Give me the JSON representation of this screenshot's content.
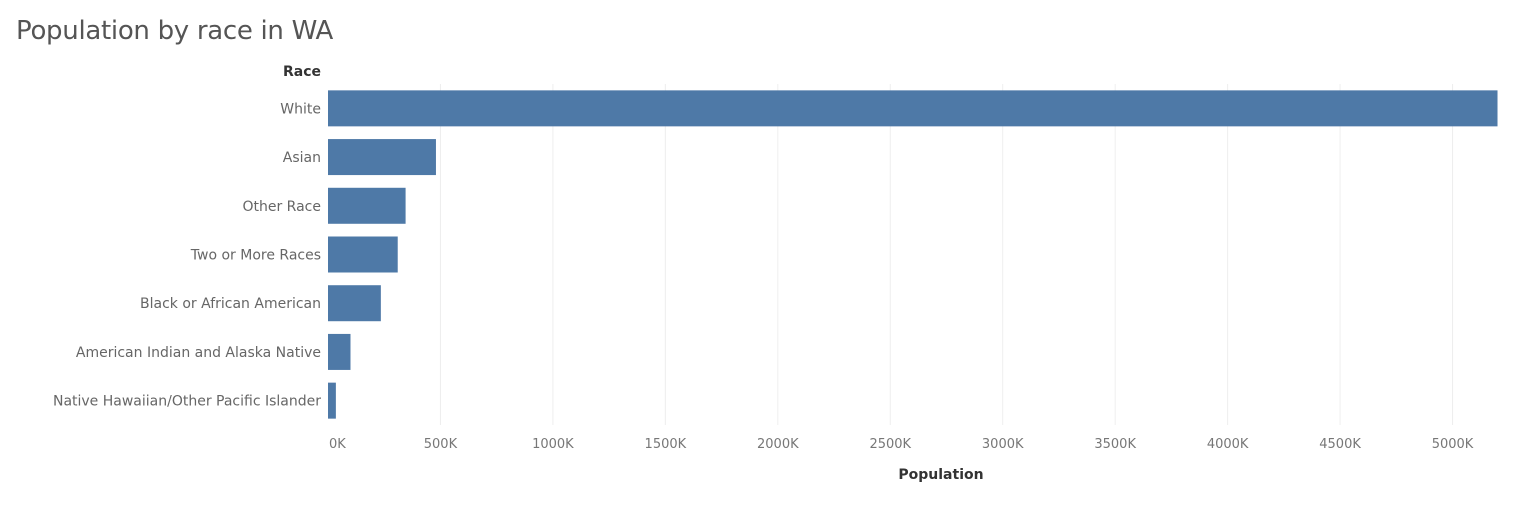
{
  "chart_data": {
    "type": "bar",
    "orientation": "horizontal",
    "title": "Population by race in WA",
    "ylabel": "Race",
    "xlabel": "Population",
    "categories": [
      "White",
      "Asian",
      "Other Race",
      "Two or More Races",
      "Black or African American",
      "American Indian and Alaska Native",
      "Native Hawaiian/Other Pacific Islander"
    ],
    "values": [
      5200000,
      480000,
      345000,
      310000,
      235000,
      100000,
      35000
    ],
    "xlim": [
      0,
      5300000
    ],
    "x_ticks": [
      0,
      500000,
      1000000,
      1500000,
      2000000,
      2500000,
      3000000,
      3500000,
      4000000,
      4500000,
      5000000
    ],
    "x_tick_labels": [
      "0K",
      "500K",
      "1000K",
      "1500K",
      "2000K",
      "2500K",
      "3000K",
      "3500K",
      "4000K",
      "4500K",
      "5000K"
    ],
    "grid": "vertical",
    "bar_color": "#4e79a7",
    "grid_color": "#eeeeee"
  }
}
